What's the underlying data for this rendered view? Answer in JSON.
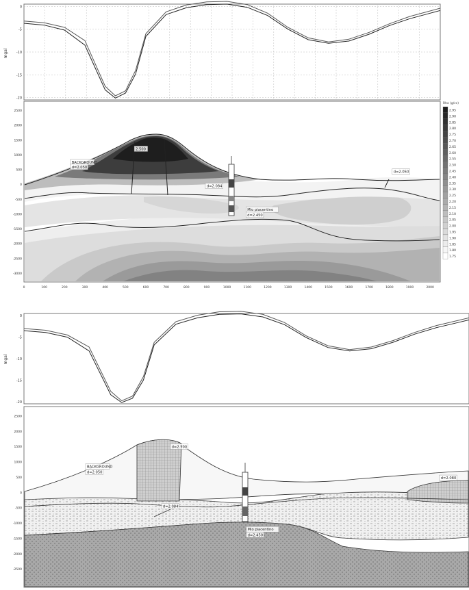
{
  "chart_data": [
    {
      "type": "line",
      "ylabel": "mgal",
      "yticks": [
        "0",
        "-5",
        "-10",
        "-15",
        "-20"
      ],
      "ylim": [
        -20.5,
        0.5
      ],
      "xlim": [
        0,
        2050
      ],
      "grid": true,
      "series": [
        {
          "x": [
            0,
            100,
            200,
            300,
            400,
            450,
            500,
            550,
            600,
            700,
            800,
            900,
            1000,
            1100,
            1200,
            1300,
            1400,
            1500,
            1600,
            1700,
            1800,
            1900,
            2000,
            2050
          ],
          "values": [
            -3.2,
            -3.6,
            -4.6,
            -7.5,
            -17.5,
            -19.6,
            -18.5,
            -14,
            -6,
            -1.2,
            0.3,
            1.0,
            1.1,
            0.4,
            -1.5,
            -4.6,
            -6.9,
            -7.8,
            -7.2,
            -5.7,
            -3.8,
            -2.2,
            -1.0,
            -0.4
          ]
        },
        {
          "x": [
            0,
            100,
            200,
            300,
            400,
            450,
            500,
            550,
            600,
            700,
            800,
            900,
            1000,
            1100,
            1200,
            1300,
            1400,
            1500,
            1600,
            1700,
            1800,
            1900,
            2000,
            2050
          ],
          "values": [
            -3.7,
            -4.1,
            -5.2,
            -8.5,
            -18.3,
            -20.1,
            -19.0,
            -14.8,
            -6.6,
            -1.8,
            -0.3,
            0.4,
            0.5,
            -0.2,
            -2.0,
            -5.0,
            -7.3,
            -8.1,
            -7.6,
            -6.1,
            -4.2,
            -2.7,
            -1.5,
            -0.9
          ]
        }
      ]
    },
    {
      "type": "heatmap",
      "xticks": [
        "0",
        "100",
        "200",
        "300",
        "400",
        "500",
        "600",
        "700",
        "800",
        "900",
        "1000",
        "1100",
        "1200",
        "1300",
        "1400",
        "1500",
        "1600",
        "1700",
        "1800",
        "1900",
        "2000"
      ],
      "yticks": [
        "2500",
        "2000",
        "1500",
        "1000",
        "500",
        "0",
        "-500",
        "-1000",
        "-1500",
        "-2000",
        "-2500",
        "-3000"
      ],
      "xlim": [
        0,
        2050
      ],
      "ylim": [
        -3300,
        2800
      ],
      "legend_title": "Rho (g/cc)",
      "legend_position": "right",
      "legend_values": [
        "2.95",
        "2.90",
        "2.85",
        "2.80",
        "2.75",
        "2.70",
        "2.65",
        "2.60",
        "2.55",
        "2.50",
        "2.45",
        "2.40",
        "2.35",
        "2.30",
        "2.25",
        "2.20",
        "2.15",
        "2.10",
        "2.05",
        "2.00",
        "1.95",
        "1.90",
        "1.85",
        "1.80",
        "1.75"
      ],
      "annotations": [
        {
          "text": "2.500",
          "x": 550,
          "y": 1150
        },
        {
          "text": "BACKGROUND",
          "x": 235,
          "y": 700
        },
        {
          "text": "d=2.050",
          "x": 235,
          "y": 540
        },
        {
          "text": "d=2.050",
          "x": 1820,
          "y": 380
        },
        {
          "text": "d=2.084",
          "x": 900,
          "y": -100
        },
        {
          "text": "Mio piacentino",
          "x": 1100,
          "y": -900
        },
        {
          "text": "d=2.450",
          "x": 1100,
          "y": -1080
        }
      ],
      "well_x": 960
    },
    {
      "type": "line",
      "ylabel": "mgal",
      "yticks": [
        "0",
        "-5",
        "-10",
        "-15",
        "-20"
      ],
      "ylim": [
        -20.5,
        0.5
      ],
      "xlim": [
        0,
        2050
      ],
      "grid": false,
      "series": [
        {
          "x": [
            0,
            100,
            200,
            300,
            400,
            450,
            500,
            550,
            600,
            700,
            800,
            900,
            1000,
            1100,
            1200,
            1300,
            1400,
            1500,
            1600,
            1700,
            1800,
            1900,
            2000,
            2050
          ],
          "values": [
            -3.0,
            -3.4,
            -4.5,
            -7.3,
            -17.6,
            -19.8,
            -18.7,
            -14.2,
            -6.2,
            -1.4,
            0.1,
            0.9,
            1.0,
            0.3,
            -1.6,
            -4.7,
            -7.0,
            -7.9,
            -7.3,
            -5.8,
            -3.9,
            -2.3,
            -1.1,
            -0.5
          ]
        },
        {
          "x": [
            0,
            100,
            200,
            300,
            400,
            450,
            500,
            550,
            600,
            700,
            800,
            900,
            1000,
            1100,
            1200,
            1300,
            1400,
            1500,
            1600,
            1700,
            1800,
            1900,
            2000,
            2050
          ],
          "values": [
            -3.5,
            -3.9,
            -5.0,
            -8.2,
            -18.4,
            -20.2,
            -19.2,
            -15.0,
            -6.8,
            -2.0,
            -0.5,
            0.3,
            0.4,
            -0.3,
            -2.1,
            -5.1,
            -7.4,
            -8.2,
            -7.7,
            -6.2,
            -4.3,
            -2.8,
            -1.6,
            -1.0
          ]
        }
      ]
    },
    {
      "type": "area",
      "yticks": [
        "2500",
        "2000",
        "1500",
        "1000",
        "500",
        "0",
        "-500",
        "-1000",
        "-1500",
        "-2000",
        "-2500"
      ],
      "xlim": [
        0,
        2050
      ],
      "ylim": [
        -3100,
        2800
      ],
      "annotations": [
        {
          "text": "d=2.500",
          "x": 680,
          "y": 1450
        },
        {
          "text": "BACKGROUND",
          "x": 290,
          "y": 800
        },
        {
          "text": "d=2.050",
          "x": 290,
          "y": 620
        },
        {
          "text": "d=2.084",
          "x": 640,
          "y": -500
        },
        {
          "text": "d=2.080",
          "x": 1920,
          "y": 430
        },
        {
          "text": "Mio piacentino",
          "x": 1030,
          "y": -1250
        },
        {
          "text": "d=2.450",
          "x": 1030,
          "y": -1430
        }
      ],
      "well_x": 960
    }
  ]
}
